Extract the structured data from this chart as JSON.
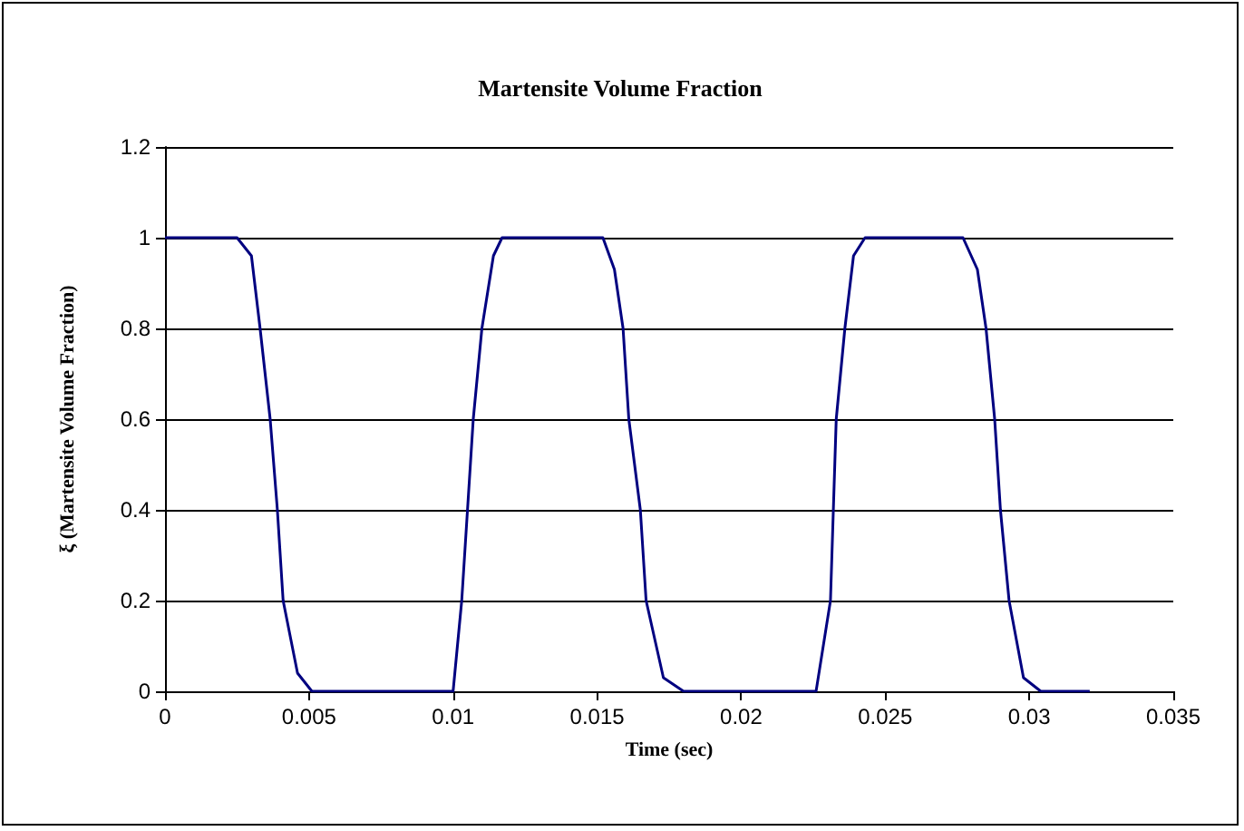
{
  "chart_data": {
    "type": "line",
    "title": "Martensite Volume Fraction",
    "xlabel": "Time (sec)",
    "ylabel": "ξ (Martensite Volume Fraction)",
    "series": [
      {
        "color": "#000080",
        "x": [
          0,
          0.0025,
          0.003,
          0.0033,
          0.00365,
          0.0039,
          0.0041,
          0.0046,
          0.0051,
          0.01,
          0.0103,
          0.0107,
          0.011,
          0.0114,
          0.0117,
          0.0152,
          0.0156,
          0.0159,
          0.0161,
          0.0165,
          0.0167,
          0.0173,
          0.018,
          0.0226,
          0.0231,
          0.0233,
          0.0236,
          0.0239,
          0.0243,
          0.0277,
          0.0282,
          0.0285,
          0.0288,
          0.029,
          0.0293,
          0.0298,
          0.0304,
          0.0321
        ],
        "values": [
          1,
          1,
          0.96,
          0.8,
          0.6,
          0.4,
          0.2,
          0.04,
          0,
          0,
          0.2,
          0.6,
          0.8,
          0.96,
          1,
          1,
          0.93,
          0.8,
          0.6,
          0.4,
          0.2,
          0.03,
          0,
          0,
          0.2,
          0.6,
          0.8,
          0.96,
          1,
          1,
          0.93,
          0.8,
          0.6,
          0.4,
          0.2,
          0.03,
          0,
          0
        ]
      }
    ],
    "xlim": [
      0,
      0.035
    ],
    "xticks": [
      0,
      0.005,
      0.01,
      0.015,
      0.02,
      0.025,
      0.03,
      0.035
    ],
    "ylim": [
      0,
      1.2
    ],
    "yticks": [
      0,
      0.2,
      0.4,
      0.6,
      0.8,
      1,
      1.2
    ],
    "grid": "y",
    "marker": "none",
    "line_style": "solid"
  }
}
